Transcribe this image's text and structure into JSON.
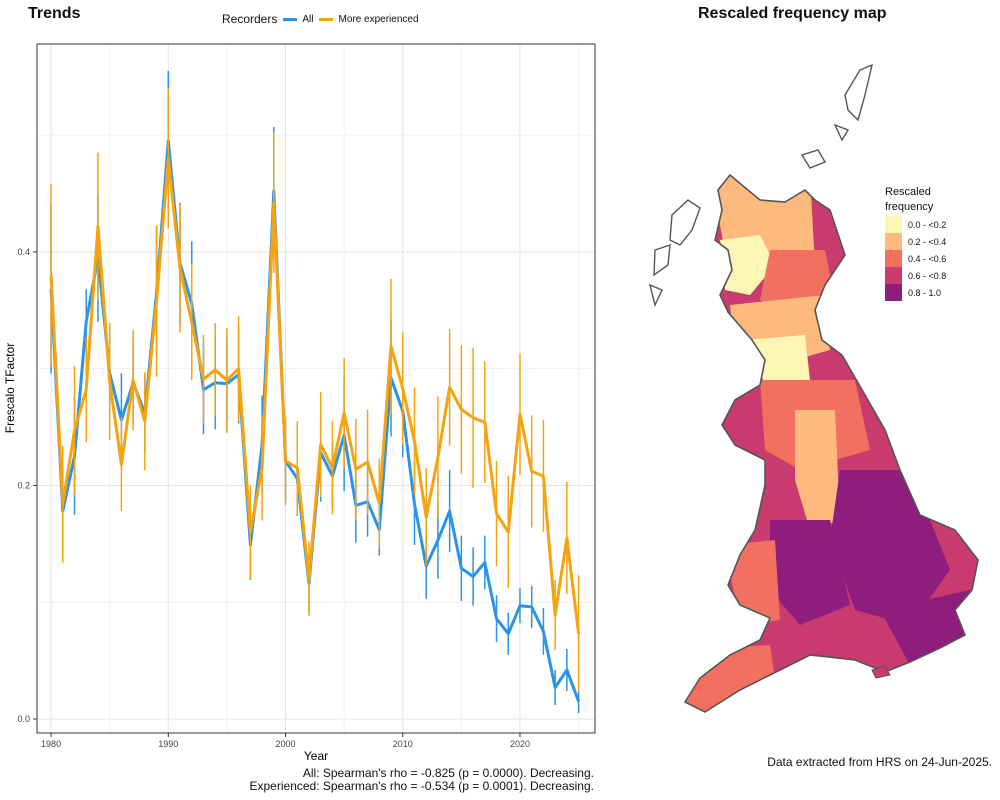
{
  "trends_title": "Trends",
  "map_title": "Rescaled frequency map",
  "legend": {
    "title": "Recorders",
    "entries": [
      {
        "name": "All",
        "color": "#2b93ea"
      },
      {
        "name": "More experienced",
        "color": "#f5a30f"
      }
    ]
  },
  "chart_data": {
    "type": "line",
    "xlabel": "Year",
    "ylabel": "Frescalo TFactor",
    "xlim": [
      1978.8,
      2026.4
    ],
    "ylim": [
      -0.012,
      0.578
    ],
    "x_ticks": [
      1980,
      1990,
      2000,
      2010,
      2020
    ],
    "y_ticks": [
      0.0,
      0.2,
      0.4
    ],
    "grid": true,
    "series": [
      {
        "name": "All",
        "color": "#2b93ea",
        "x": [
          1980,
          1981,
          1982,
          1983,
          1984,
          1985,
          1986,
          1987,
          1988,
          1989,
          1990,
          1991,
          1992,
          1993,
          1994,
          1995,
          1996,
          1997,
          1998,
          1999,
          2000,
          2001,
          2002,
          2003,
          2004,
          2005,
          2006,
          2007,
          2008,
          2009,
          2010,
          2011,
          2012,
          2013,
          2014,
          2015,
          2016,
          2017,
          2018,
          2019,
          2020,
          2021,
          2022,
          2023,
          2024,
          2025
        ],
        "y": [
          0.368,
          0.178,
          0.225,
          0.34,
          0.395,
          0.296,
          0.256,
          0.288,
          0.262,
          0.365,
          0.495,
          0.39,
          0.356,
          0.282,
          0.288,
          0.287,
          0.295,
          0.149,
          0.235,
          0.452,
          0.221,
          0.206,
          0.116,
          0.228,
          0.208,
          0.243,
          0.183,
          0.186,
          0.162,
          0.292,
          0.264,
          0.184,
          0.131,
          0.153,
          0.178,
          0.129,
          0.122,
          0.134,
          0.086,
          0.073,
          0.097,
          0.096,
          0.075,
          0.027,
          0.042,
          0.015
        ],
        "err": [
          0.072,
          0.035,
          0.05,
          0.028,
          0.055,
          0.04,
          0.04,
          0.035,
          0.033,
          0.056,
          0.06,
          0.052,
          0.053,
          0.038,
          0.04,
          0.04,
          0.042,
          0.03,
          0.042,
          0.055,
          0.034,
          0.032,
          0.025,
          0.042,
          0.028,
          0.048,
          0.032,
          0.03,
          0.022,
          0.05,
          0.04,
          0.035,
          0.028,
          0.033,
          0.035,
          0.028,
          0.025,
          0.023,
          0.02,
          0.018,
          0.015,
          0.018,
          0.02,
          0.015,
          0.018,
          0.01
        ]
      },
      {
        "name": "More experienced",
        "color": "#f5a30f",
        "x": [
          1980,
          1981,
          1982,
          1983,
          1984,
          1985,
          1986,
          1987,
          1988,
          1989,
          1990,
          1991,
          1992,
          1993,
          1994,
          1995,
          1996,
          1997,
          1998,
          1999,
          2000,
          2001,
          2002,
          2003,
          2004,
          2005,
          2006,
          2007,
          2008,
          2009,
          2010,
          2011,
          2012,
          2013,
          2014,
          2015,
          2016,
          2017,
          2018,
          2019,
          2020,
          2021,
          2022,
          2023,
          2024,
          2025
        ],
        "y": [
          0.38,
          0.184,
          0.247,
          0.282,
          0.422,
          0.289,
          0.218,
          0.29,
          0.255,
          0.358,
          0.48,
          0.386,
          0.34,
          0.291,
          0.299,
          0.29,
          0.3,
          0.16,
          0.215,
          0.442,
          0.221,
          0.215,
          0.12,
          0.235,
          0.215,
          0.262,
          0.214,
          0.22,
          0.185,
          0.319,
          0.283,
          0.238,
          0.173,
          0.224,
          0.284,
          0.265,
          0.258,
          0.254,
          0.176,
          0.16,
          0.261,
          0.212,
          0.208,
          0.089,
          0.155,
          0.073
        ],
        "err": [
          0.078,
          0.05,
          0.055,
          0.045,
          0.063,
          0.05,
          0.04,
          0.043,
          0.042,
          0.065,
          0.06,
          0.055,
          0.05,
          0.038,
          0.04,
          0.045,
          0.045,
          0.04,
          0.045,
          0.06,
          0.038,
          0.04,
          0.032,
          0.045,
          0.04,
          0.047,
          0.043,
          0.045,
          0.038,
          0.058,
          0.048,
          0.046,
          0.042,
          0.052,
          0.05,
          0.055,
          0.06,
          0.052,
          0.045,
          0.048,
          0.052,
          0.048,
          0.048,
          0.03,
          0.048,
          0.05
        ]
      }
    ]
  },
  "footer": {
    "stat_all": "All: Spearman's rho = -0.825 (p = 0.0000). Decreasing.",
    "stat_experienced": "Experienced: Spearman's rho = -0.534 (p = 0.0001). Decreasing.",
    "data_source": "Data extracted from HRS on 24-Jun-2025."
  },
  "map_legend": {
    "title_line1": "Rescaled",
    "title_line2": "frequency",
    "classes": [
      {
        "label": "0.0 - <0.2",
        "color": "#fdf6b4"
      },
      {
        "label": "0.2 - <0.4",
        "color": "#fdb97e"
      },
      {
        "label": "0.4 - <0.6",
        "color": "#f2705f"
      },
      {
        "label": "0.6 - <0.8",
        "color": "#c93a6e"
      },
      {
        "label": "0.8 - 1.0",
        "color": "#8e1d7e"
      }
    ]
  }
}
